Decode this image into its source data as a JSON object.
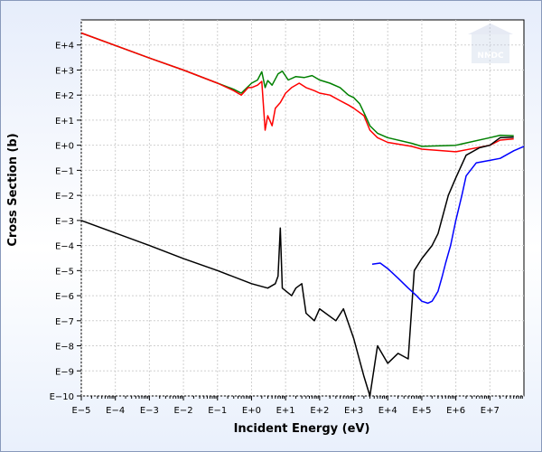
{
  "chart_data": {
    "type": "line",
    "title": "",
    "xlabel": "Incident Energy (eV)",
    "ylabel": "Cross Section (b)",
    "x_scale": "log",
    "y_scale": "log",
    "xlim": [
      1e-05,
      100000000.0
    ],
    "ylim": [
      1e-10,
      100000.0
    ],
    "x_tick_labels": [
      "E−5",
      "E−4",
      "E−3",
      "E−2",
      "E−1",
      "E+0",
      "E+1",
      "E+2",
      "E+3",
      "E+4",
      "E+5",
      "E+6",
      "E+7"
    ],
    "y_tick_labels": [
      "E+4",
      "E+3",
      "E+2",
      "E+1",
      "E+0",
      "E−1",
      "E−2",
      "E−3",
      "E−4",
      "E−5",
      "E−6",
      "E−7",
      "E−8",
      "E−9",
      "E−10"
    ],
    "grid": true,
    "legend": "none",
    "series": [
      {
        "color": "#008000",
        "points": [
          [
            1e-05,
            30000
          ],
          [
            0.001,
            3000
          ],
          [
            0.01,
            1000
          ],
          [
            0.1,
            300
          ],
          [
            0.3,
            170
          ],
          [
            0.5,
            120
          ],
          [
            1,
            300
          ],
          [
            1.5,
            400
          ],
          [
            2,
            850
          ],
          [
            2.5,
            200
          ],
          [
            3,
            380
          ],
          [
            4,
            250
          ],
          [
            6,
            700
          ],
          [
            8,
            900
          ],
          [
            12,
            400
          ],
          [
            20,
            550
          ],
          [
            35,
            500
          ],
          [
            60,
            600
          ],
          [
            100,
            400
          ],
          [
            200,
            300
          ],
          [
            400,
            200
          ],
          [
            700,
            100
          ],
          [
            1000,
            80
          ],
          [
            1500,
            45
          ],
          [
            2000,
            20
          ],
          [
            3000,
            6
          ],
          [
            5000,
            3
          ],
          [
            10000.0,
            2
          ],
          [
            50000.0,
            1.2
          ],
          [
            100000.0,
            0.9
          ],
          [
            1000000.0,
            1
          ],
          [
            10000000.0,
            2
          ],
          [
            20000000.0,
            2.5
          ],
          [
            50000000.0,
            2.4
          ]
        ]
      },
      {
        "color": "#ff0000",
        "points": [
          [
            1e-05,
            30000
          ],
          [
            0.001,
            3000
          ],
          [
            0.01,
            1000
          ],
          [
            0.1,
            300
          ],
          [
            0.3,
            150
          ],
          [
            0.5,
            100
          ],
          [
            0.8,
            200
          ],
          [
            1,
            200
          ],
          [
            1.5,
            250
          ],
          [
            2,
            350
          ],
          [
            2.5,
            4
          ],
          [
            3,
            15
          ],
          [
            4,
            6
          ],
          [
            5,
            30
          ],
          [
            7,
            50
          ],
          [
            10,
            120
          ],
          [
            15,
            200
          ],
          [
            25,
            300
          ],
          [
            40,
            200
          ],
          [
            70,
            150
          ],
          [
            100,
            120
          ],
          [
            200,
            100
          ],
          [
            400,
            60
          ],
          [
            700,
            40
          ],
          [
            1000,
            30
          ],
          [
            2000,
            15
          ],
          [
            3000,
            4
          ],
          [
            5000,
            2
          ],
          [
            10000.0,
            1.3
          ],
          [
            50000.0,
            0.9
          ],
          [
            100000.0,
            0.7
          ],
          [
            1000000.0,
            0.55
          ],
          [
            10000000.0,
            1
          ],
          [
            20000000.0,
            1.6
          ],
          [
            50000000.0,
            1.8
          ]
        ]
      },
      {
        "color": "#000000",
        "points": [
          [
            1e-05,
            0.001
          ],
          [
            0.001,
            0.0001
          ],
          [
            0.01,
            3e-05
          ],
          [
            0.1,
            1e-05
          ],
          [
            1,
            3e-06
          ],
          [
            3,
            2e-06
          ],
          [
            5,
            3e-06
          ],
          [
            6,
            6e-06
          ],
          [
            7,
            0.0005
          ],
          [
            8,
            2e-06
          ],
          [
            15,
            1e-06
          ],
          [
            20,
            2e-06
          ],
          [
            30,
            3e-06
          ],
          [
            40,
            2e-07
          ],
          [
            70,
            1e-07
          ],
          [
            100,
            3e-07
          ],
          [
            300,
            1e-07
          ],
          [
            500,
            3e-07
          ],
          [
            1000,
            2e-08
          ],
          [
            2000,
            6e-10
          ],
          [
            3000,
            1e-10
          ],
          [
            5000,
            1e-08
          ],
          [
            10000.0,
            2e-09
          ],
          [
            20000.0,
            5e-09
          ],
          [
            40000.0,
            3e-09
          ],
          [
            60000.0,
            1e-05
          ],
          [
            100000.0,
            3e-05
          ],
          [
            200000.0,
            0.0001
          ],
          [
            300000.0,
            0.0003
          ],
          [
            600000.0,
            0.01
          ],
          [
            1000000.0,
            0.05
          ],
          [
            2000000.0,
            0.4
          ],
          [
            5000000.0,
            0.8
          ],
          [
            10000000.0,
            1
          ],
          [
            20000000.0,
            2
          ],
          [
            50000000.0,
            2.1
          ]
        ]
      },
      {
        "color": "#0000ff",
        "points": [
          [
            3500.0,
            1.8e-05
          ],
          [
            6000.0,
            2e-05
          ],
          [
            10000.0,
            1.2e-05
          ],
          [
            20000.0,
            5e-06
          ],
          [
            40000.0,
            2e-06
          ],
          [
            70000.0,
            1e-06
          ],
          [
            100000.0,
            6e-07
          ],
          [
            150000.0,
            5e-07
          ],
          [
            200000.0,
            6e-07
          ],
          [
            300000.0,
            1.5e-06
          ],
          [
            400000.0,
            6e-06
          ],
          [
            500000.0,
            2e-05
          ],
          [
            700000.0,
            0.0001
          ],
          [
            1000000.0,
            0.001
          ],
          [
            1500000.0,
            0.01
          ],
          [
            2000000.0,
            0.06
          ],
          [
            4000000.0,
            0.2
          ],
          [
            10000000.0,
            0.25
          ],
          [
            20000000.0,
            0.3
          ],
          [
            50000000.0,
            0.6
          ],
          [
            100000000.0,
            0.9
          ]
        ]
      }
    ]
  },
  "watermark": {
    "label": "NNDC"
  }
}
